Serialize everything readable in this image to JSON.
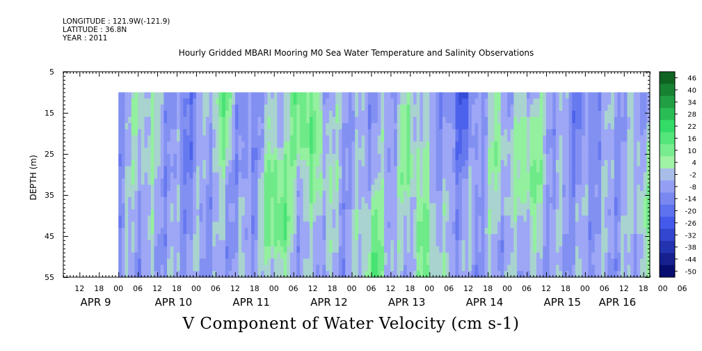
{
  "header": {
    "longitude": "LONGITUDE : 121.9W(-121.9)",
    "latitude": "LATITUDE : 36.8N",
    "year": "YEAR : 2011",
    "title": "Hourly Gridded MBARI Mooring M0 Sea Water Temperature and Salinity Observations"
  },
  "chart_data": {
    "type": "heatmap",
    "title": "Hourly Gridded MBARI Mooring M0 Sea Water Temperature and Salinity Observations",
    "xlabel": "V Component of Water Velocity (cm s-1)",
    "ylabel": "DEPTH (m)",
    "ylim": [
      5,
      55
    ],
    "y_inverted": true,
    "yticks": [
      5,
      15,
      25,
      35,
      45,
      55
    ],
    "xlim": [
      0,
      181
    ],
    "x_tick_labels": [
      "12",
      "18",
      "00",
      "06",
      "12",
      "18",
      "00",
      "06",
      "12",
      "18",
      "00",
      "06",
      "12",
      "18",
      "00",
      "06",
      "12",
      "18",
      "00",
      "06",
      "12",
      "18",
      "00",
      "06",
      "12",
      "18",
      "00",
      "06",
      "12",
      "18",
      "00",
      "06"
    ],
    "x_date_labels": [
      "APR 9",
      "APR 10",
      "APR 11",
      "APR 12",
      "APR 13",
      "APR 14",
      "APR 15",
      "APR 16"
    ],
    "data_depth_range": [
      10,
      55
    ],
    "data_time_start_hour": 17,
    "colorbar": {
      "levels": [
        "46",
        "40",
        "34",
        "28",
        "22",
        "16",
        "10",
        "4",
        "-2",
        "-8",
        "-14",
        "-20",
        "-26",
        "-32",
        "-38",
        "-44",
        "-50"
      ],
      "min": -50,
      "max": 49
    },
    "features": [
      {
        "time_hour": 25,
        "depth": 20,
        "value": 6
      },
      {
        "time_hour": 38,
        "depth": 20,
        "value": -12
      },
      {
        "time_hour": 50,
        "depth": 12,
        "value": 15
      },
      {
        "time_hour": 55,
        "depth": 18,
        "value": -14
      },
      {
        "time_hour": 66,
        "depth": 38,
        "value": 20
      },
      {
        "time_hour": 74,
        "depth": 14,
        "value": 18
      },
      {
        "time_hour": 80,
        "depth": 30,
        "value": 6
      },
      {
        "time_hour": 96,
        "depth": 50,
        "value": 14
      },
      {
        "time_hour": 107,
        "depth": 25,
        "value": 10
      },
      {
        "time_hour": 112,
        "depth": 50,
        "value": 12
      },
      {
        "time_hour": 123,
        "depth": 12,
        "value": -20
      },
      {
        "time_hour": 134,
        "depth": 25,
        "value": 6
      },
      {
        "time_hour": 144,
        "depth": 28,
        "value": 14
      },
      {
        "time_hour": 160,
        "depth": 15,
        "value": -12
      },
      {
        "time_hour": 180,
        "depth": 38,
        "value": 8
      }
    ]
  },
  "colors": {
    "green_max": "#0c5a1c",
    "green_mid": "#35e06a",
    "green_light": "#a6f3a8",
    "blue_light": "#aab2f6",
    "blue_mid": "#3e56ea",
    "blue_max": "#050a6a"
  }
}
